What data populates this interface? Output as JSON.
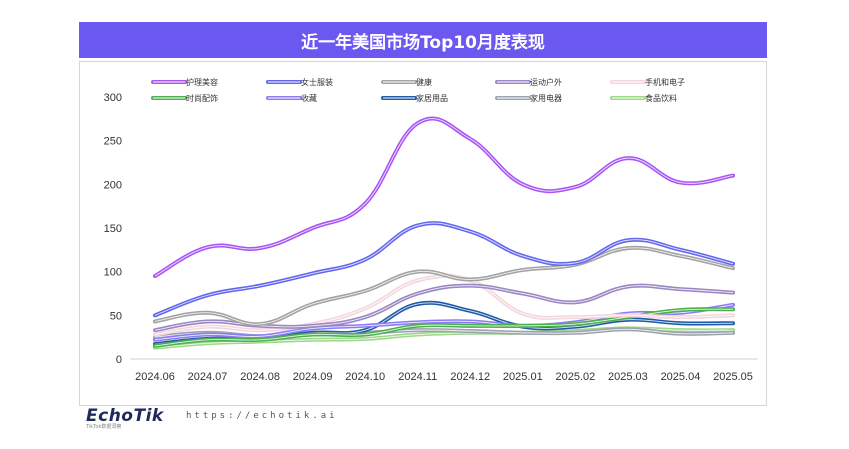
{
  "page": {
    "title": "近一年美国市场Top10月度表现",
    "logo": "EchoTik",
    "logo_sub": "TikTok数据洞察",
    "url": "https://echotik.ai"
  },
  "chart_data": {
    "type": "line",
    "title": "近一年美国市场Top10月度表现",
    "categories": [
      "2024.06",
      "2024.07",
      "2024.08",
      "2024.09",
      "2024.10",
      "2024.11",
      "2024.12",
      "2025.01",
      "2025.02",
      "2025.03",
      "2025.04",
      "2025.05"
    ],
    "ylim": [
      0,
      300
    ],
    "yticks": [
      0,
      50,
      100,
      150,
      200,
      250,
      300
    ],
    "grid": false,
    "legend_position": "top",
    "series": [
      {
        "name": "护理美容",
        "color": "#a855f7",
        "values": [
          95,
          128,
          127,
          150,
          178,
          270,
          252,
          200,
          197,
          230,
          202,
          210
        ]
      },
      {
        "name": "女士服装",
        "color": "#6366f1",
        "values": [
          50,
          73,
          84,
          98,
          114,
          153,
          146,
          118,
          110,
          136,
          125,
          109
        ]
      },
      {
        "name": "健康",
        "color": "#a3a3a3",
        "values": [
          43,
          53,
          40,
          63,
          78,
          100,
          91,
          102,
          108,
          127,
          118,
          104
        ]
      },
      {
        "name": "运动户外",
        "color": "#9b87c4",
        "values": [
          33,
          43,
          38,
          38,
          48,
          75,
          84,
          75,
          65,
          83,
          80,
          76
        ]
      },
      {
        "name": "手机和电子",
        "color": "#f3d6de",
        "values": [
          28,
          37,
          33,
          40,
          58,
          90,
          90,
          52,
          48,
          50,
          48,
          50
        ]
      },
      {
        "name": "时尚配饰",
        "color": "#4caf50",
        "values": [
          15,
          22,
          22,
          28,
          28,
          38,
          38,
          38,
          40,
          48,
          56,
          57
        ]
      },
      {
        "name": "收藏",
        "color": "#8b7cf6",
        "values": [
          22,
          28,
          26,
          35,
          38,
          42,
          43,
          38,
          42,
          52,
          53,
          62
        ]
      },
      {
        "name": "家居用品",
        "color": "#1e5aa8",
        "values": [
          17,
          23,
          23,
          30,
          33,
          63,
          55,
          37,
          37,
          45,
          41,
          41
        ]
      },
      {
        "name": "家用电器",
        "color": "#9ca3af",
        "values": [
          25,
          30,
          26,
          28,
          30,
          33,
          32,
          30,
          30,
          34,
          29,
          30
        ]
      },
      {
        "name": "食品饮料",
        "color": "#9ed98a",
        "values": [
          13,
          18,
          20,
          22,
          23,
          28,
          30,
          30,
          32,
          35,
          33,
          33
        ]
      }
    ]
  }
}
